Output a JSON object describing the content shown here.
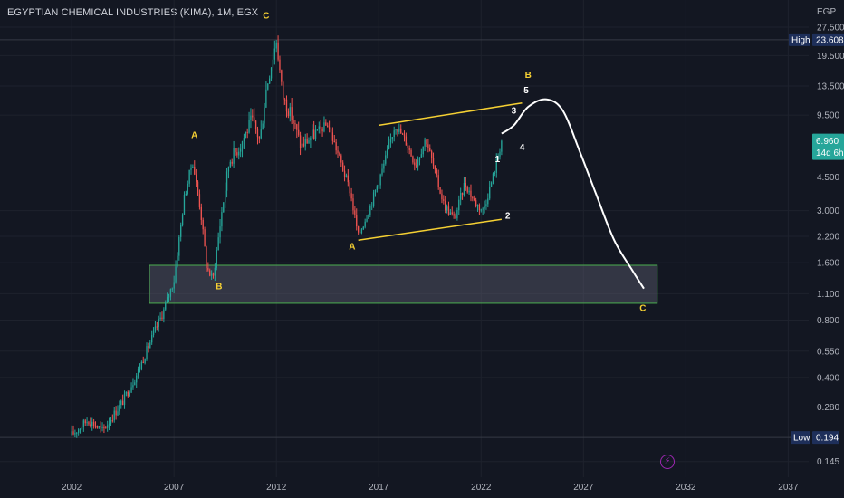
{
  "header": {
    "title": "EGYPTIAN CHEMICAL INDUSTRIES (KIMA), 1M, EGX"
  },
  "colors": {
    "background": "#131722",
    "up": "#26a69a",
    "down": "#ef5350",
    "wave_label_yellow": "#f5d033",
    "wave_label_white": "#ffffff",
    "channel_line": "#f5d033",
    "zone_border": "#4caf50",
    "zone_fill": "#5a5e6e",
    "price_badge": "#26a69a",
    "high_low_badge": "#1e2f5a"
  },
  "chart_data": {
    "type": "candlestick",
    "currency_label": "EGP",
    "y_scale": "log",
    "ylim": [
      0.12,
      30
    ],
    "xlim": [
      1998.5,
      2038
    ],
    "y_ticks": [
      "27.500",
      "19.500",
      "13.500",
      "9.500",
      "4.500",
      "3.000",
      "2.200",
      "1.600",
      "1.100",
      "0.800",
      "0.550",
      "0.400",
      "0.280",
      "0.145"
    ],
    "x_ticks": [
      "2002",
      "2007",
      "2012",
      "2017",
      "2022",
      "2027",
      "2032",
      "2037"
    ],
    "price_path": [
      [
        2002.0,
        0.2
      ],
      [
        2002.8,
        0.24
      ],
      [
        2003.5,
        0.21
      ],
      [
        2004.5,
        0.3
      ],
      [
        2005.2,
        0.42
      ],
      [
        2005.8,
        0.6
      ],
      [
        2006.5,
        0.9
      ],
      [
        2007.0,
        1.3
      ],
      [
        2007.5,
        3.5
      ],
      [
        2007.9,
        5.5
      ],
      [
        2008.3,
        3.0
      ],
      [
        2008.6,
        1.5
      ],
      [
        2008.9,
        1.3
      ],
      [
        2009.3,
        2.8
      ],
      [
        2009.7,
        5.5
      ],
      [
        2010.2,
        6.5
      ],
      [
        2010.8,
        9.0
      ],
      [
        2011.2,
        7.0
      ],
      [
        2011.5,
        13.0
      ],
      [
        2012.0,
        23.608
      ],
      [
        2012.3,
        12.0
      ],
      [
        2012.8,
        9.0
      ],
      [
        2013.2,
        6.5
      ],
      [
        2013.8,
        7.5
      ],
      [
        2014.5,
        8.5
      ],
      [
        2015.0,
        6.0
      ],
      [
        2015.6,
        3.8
      ],
      [
        2016.0,
        2.2
      ],
      [
        2016.6,
        3.2
      ],
      [
        2017.2,
        5.0
      ],
      [
        2017.8,
        8.5
      ],
      [
        2018.3,
        7.0
      ],
      [
        2018.8,
        5.2
      ],
      [
        2019.3,
        7.2
      ],
      [
        2019.8,
        4.5
      ],
      [
        2020.2,
        3.2
      ],
      [
        2020.7,
        2.7
      ],
      [
        2021.2,
        4.2
      ],
      [
        2021.7,
        3.3
      ],
      [
        2022.1,
        3.0
      ],
      [
        2022.6,
        4.6
      ],
      [
        2023.0,
        6.96
      ]
    ],
    "price_line": {
      "value": 6.96,
      "label": "6.960",
      "countdown": "14d 6h"
    },
    "high": {
      "label": "High",
      "value": 23.608,
      "value_text": "23.608"
    },
    "low": {
      "label": "Low",
      "value": 0.194,
      "value_text": "0.194"
    },
    "zone": {
      "x_start": 2005.8,
      "x_end": 2030.6,
      "y_low": 0.98,
      "y_high": 1.55
    },
    "channel": {
      "upper": [
        [
          2017.0,
          8.4
        ],
        [
          2024.0,
          11.0
        ]
      ],
      "lower": [
        [
          2016.0,
          2.1
        ],
        [
          2023.0,
          2.7
        ]
      ]
    },
    "projection": [
      [
        2023.0,
        7.6
      ],
      [
        2023.6,
        8.4
      ],
      [
        2024.3,
        10.5
      ],
      [
        2025.2,
        11.5
      ],
      [
        2026.0,
        10.0
      ],
      [
        2026.8,
        6.2
      ],
      [
        2027.6,
        3.7
      ],
      [
        2028.5,
        2.1
      ],
      [
        2029.4,
        1.45
      ],
      [
        2029.95,
        1.17
      ]
    ],
    "wave_labels": [
      {
        "text": "C",
        "x": 2011.5,
        "y": 30.5,
        "color": "yellow"
      },
      {
        "text": "A",
        "x": 2008.0,
        "y": 7.2,
        "color": "yellow"
      },
      {
        "text": "B",
        "x": 2009.2,
        "y": 1.16,
        "color": "yellow"
      },
      {
        "text": "A",
        "x": 2015.7,
        "y": 1.88,
        "color": "yellow"
      },
      {
        "text": "B",
        "x": 2024.3,
        "y": 14.9,
        "color": "yellow"
      },
      {
        "text": "5",
        "x": 2024.2,
        "y": 12.4,
        "color": "white"
      },
      {
        "text": "3",
        "x": 2023.6,
        "y": 9.7,
        "color": "white"
      },
      {
        "text": "4",
        "x": 2024.0,
        "y": 6.2,
        "color": "white"
      },
      {
        "text": "1",
        "x": 2022.8,
        "y": 5.4,
        "color": "white"
      },
      {
        "text": "2",
        "x": 2023.3,
        "y": 2.72,
        "color": "white"
      },
      {
        "text": "C",
        "x": 2029.9,
        "y": 0.89,
        "color": "yellow"
      }
    ]
  }
}
